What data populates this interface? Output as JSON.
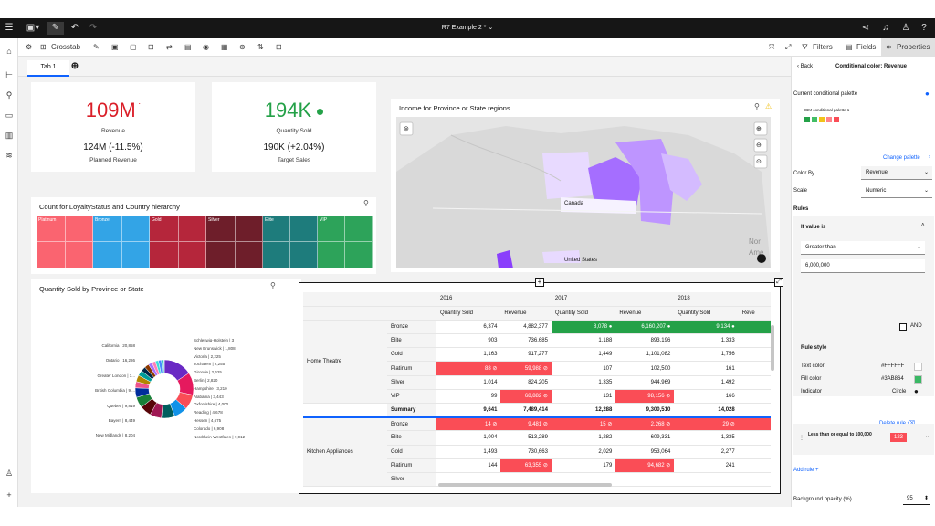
{
  "app": {
    "title": "R7 Example 2 *"
  },
  "toolbar": {
    "crosstab_label": "Crosstab",
    "filters_label": "Filters",
    "fields_label": "Fields",
    "properties_label": "Properties"
  },
  "tabs": [
    {
      "label": "Tab 1"
    }
  ],
  "kpis": [
    {
      "value": "109M",
      "label": "Revenue",
      "sub": "124M (-11.5%)",
      "sub_label": "Planned Revenue",
      "color": "#da1e28"
    },
    {
      "value": "194K",
      "label": "Quantity Sold",
      "sub": "190K (+2.04%)",
      "sub_label": "Target Sales",
      "color": "#24a148"
    }
  ],
  "map": {
    "title": "Income for Province or State regions",
    "labels": [
      "Canada",
      "United States",
      "Nor",
      "Ame"
    ]
  },
  "treemap": {
    "title": "Count for LoyaltyStatus and Country hierarchy",
    "groups": [
      {
        "name": "Platinum",
        "color": "#fa6470"
      },
      {
        "name": "Bronze",
        "color": "#33a4e6"
      },
      {
        "name": "Gold",
        "color": "#b5263b"
      },
      {
        "name": "Silver",
        "color": "#6e1e2a"
      },
      {
        "name": "Elite",
        "color": "#1e7c7c"
      },
      {
        "name": "VIP",
        "color": "#2da35a"
      }
    ]
  },
  "donut": {
    "title": "Quantity Sold by Province or State",
    "labels_left": [
      "California | 20,858",
      "Ontario | 16,286",
      "Greater London | 1...",
      "British Columbia | 9,...",
      "Quebec | 9,819",
      "Bayern | 8,449",
      "New Midlands | 8,204"
    ],
    "labels_right": [
      "Schleswig-Holstein | 3",
      "New Brunswick | 1,808",
      "Victoria | 2,225",
      "Tochaiem | 2,255",
      "Gironde | 2,625",
      "Berlin | 2,820",
      "Hampshire | 3,210",
      "Alabama | 3,443",
      "Oxfordshire | 4,000",
      "Reading | 4,678",
      "Hessen | 4,675",
      "Colorado | 6,908",
      "Nordrhein-Westfalen | 7,912"
    ],
    "chart_data": {
      "type": "pie",
      "title": "Quantity Sold by Province or State",
      "slices": [
        {
          "label": "California",
          "value": 20858,
          "color": "#6929c4"
        },
        {
          "label": "Ontario",
          "value": 16286,
          "color": "#e5195e"
        },
        {
          "label": "Greater London",
          "value": 11000,
          "color": "#fa4d56"
        },
        {
          "label": "British Columbia",
          "value": 9900,
          "color": "#1192e8"
        },
        {
          "label": "Quebec",
          "value": 9819,
          "color": "#005d5d"
        },
        {
          "label": "Bayern",
          "value": 8449,
          "color": "#9f1853"
        },
        {
          "label": "New Midlands",
          "value": 8204,
          "color": "#570408"
        },
        {
          "label": "Nordrhein-Westfalen",
          "value": 7912,
          "color": "#198038"
        },
        {
          "label": "Colorado",
          "value": 6908,
          "color": "#002d9c"
        },
        {
          "label": "Hessen",
          "value": 4675,
          "color": "#ee538b"
        },
        {
          "label": "Reading",
          "value": 4678,
          "color": "#b28600"
        },
        {
          "label": "Oxfordshire",
          "value": 4000,
          "color": "#009d9a"
        },
        {
          "label": "Alabama",
          "value": 3443,
          "color": "#012749"
        },
        {
          "label": "Hampshire",
          "value": 3210,
          "color": "#8a3800"
        },
        {
          "label": "Berlin",
          "value": 2820,
          "color": "#a56eff"
        },
        {
          "label": "Gironde",
          "value": 2625,
          "color": "#ff7eb6"
        },
        {
          "label": "Tochaiem",
          "value": 2255,
          "color": "#3ddbd9"
        },
        {
          "label": "Victoria",
          "value": 2225,
          "color": "#4589ff"
        },
        {
          "label": "New Brunswick",
          "value": 1808,
          "color": "#08bdba"
        },
        {
          "label": "Schleswig-Holstein",
          "value": 300,
          "color": "#d4bbff"
        }
      ]
    }
  },
  "crosstab": {
    "years": [
      "2016",
      "2017",
      "2018"
    ],
    "measures": [
      "Quantity Sold",
      "Revenue",
      "Quantity Sold",
      "Revenue",
      "Quantity Sold",
      "Reve"
    ],
    "groups": [
      {
        "name": "Home Theatre",
        "rows": [
          {
            "label": "Bronze",
            "cells": [
              "6,374",
              "4,882,377",
              "8,078",
              "6,160,207",
              "9,134"
            ],
            "styles": [
              "",
              "",
              "grn",
              "grn",
              "grn"
            ]
          },
          {
            "label": "Elite",
            "cells": [
              "903",
              "736,685",
              "1,188",
              "893,196",
              "1,333"
            ],
            "styles": [
              "",
              "",
              "",
              "",
              ""
            ]
          },
          {
            "label": "Gold",
            "cells": [
              "1,163",
              "917,277",
              "1,449",
              "1,101,082",
              "1,756"
            ],
            "styles": [
              "",
              "",
              "",
              "",
              ""
            ]
          },
          {
            "label": "Platinum",
            "cells": [
              "88",
              "59,988",
              "107",
              "102,500",
              "161"
            ],
            "styles": [
              "red",
              "red",
              "",
              "",
              ""
            ]
          },
          {
            "label": "Silver",
            "cells": [
              "1,014",
              "824,205",
              "1,335",
              "944,969",
              "1,492"
            ],
            "styles": [
              "",
              "",
              "",
              "",
              ""
            ]
          },
          {
            "label": "VIP",
            "cells": [
              "99",
              "68,882",
              "131",
              "98,156",
              "166"
            ],
            "styles": [
              "",
              "red",
              "",
              "red",
              ""
            ]
          }
        ]
      },
      {
        "name": "Summary",
        "rows": [
          {
            "label": "Summary",
            "cells": [
              "9,641",
              "7,489,414",
              "12,288",
              "9,300,510",
              "14,028"
            ],
            "styles": [
              "",
              "",
              "",
              "",
              ""
            ]
          }
        ]
      },
      {
        "name": "Kitchen Appliances",
        "rows": [
          {
            "label": "Bronze",
            "cells": [
              "14",
              "9,481",
              "15",
              "2,268",
              "29"
            ],
            "styles": [
              "red",
              "red",
              "red",
              "red",
              "red"
            ]
          },
          {
            "label": "Elite",
            "cells": [
              "1,004",
              "513,289",
              "1,282",
              "609,331",
              "1,335"
            ],
            "styles": [
              "",
              "",
              "",
              "",
              ""
            ]
          },
          {
            "label": "Gold",
            "cells": [
              "1,493",
              "730,663",
              "2,029",
              "953,064",
              "2,277"
            ],
            "styles": [
              "",
              "",
              "",
              "",
              ""
            ]
          },
          {
            "label": "Platinum",
            "cells": [
              "144",
              "63,355",
              "179",
              "94,682",
              "241"
            ],
            "styles": [
              "",
              "red",
              "",
              "red",
              ""
            ]
          },
          {
            "label": "Silver",
            "cells": [
              "",
              "",
              "",
              "",
              ""
            ],
            "styles": [
              "",
              "",
              "",
              "",
              ""
            ]
          }
        ]
      }
    ]
  },
  "panel": {
    "back_label": "Back",
    "title": "Conditional color: Revenue",
    "current_palette_label": "Current conditional palette",
    "palette_name": "IBM conditional palette 1",
    "palette_colors": [
      "#24a148",
      "#42be65",
      "#f1c21b",
      "#ff8389",
      "#fa4d56"
    ],
    "change_palette_label": "Change palette",
    "color_by_label": "Color By",
    "color_by_value": "Revenue",
    "scale_label": "Scale",
    "scale_value": "Numeric",
    "rules_label": "Rules",
    "if_value_label": "If value is",
    "condition_value": "Greater than",
    "threshold_value": "6,000,000",
    "and_label": "AND",
    "rule_style_label": "Rule style",
    "text_color_label": "Text color",
    "text_color_value": "#FFFFFF",
    "fill_color_label": "Fill color",
    "fill_color_value": "#3AB864",
    "fill_color_hex": "#3ab864",
    "indicator_label": "Indicator",
    "indicator_value": "Circle",
    "delete_rule_label": "Delete rule",
    "rule2_text": "Less than or equal to 100,000",
    "rule2_badge": "123",
    "add_rule_label": "Add rule",
    "bg_opacity_label": "Background opacity (%)",
    "bg_opacity_value": "95"
  }
}
